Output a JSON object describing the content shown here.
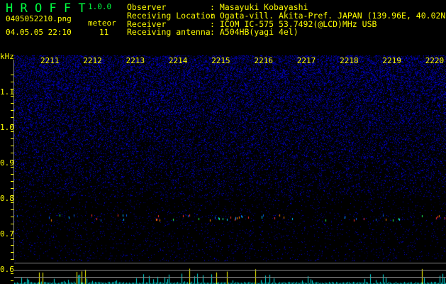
{
  "app": {
    "name": "H R O F F T",
    "version": "1.0.0"
  },
  "file": {
    "name": "0405052210.png",
    "datetime": "04.05.05 22:10",
    "meteor_label": "meteor",
    "meteor_count": "11"
  },
  "info": [
    {
      "label": "Observer",
      "value": "Masayuki Kobayashi"
    },
    {
      "label": "Receiving Location",
      "value": "Ogata-vill. Akita-Pref. JAPAN (139.96E, 40.02N)"
    },
    {
      "label": "Receiver",
      "value": "ICOM IC-575 53.7492(@LCD)MHz USB"
    },
    {
      "label": "Receiving antenna",
      "value": "A504HB(yagi 4el)"
    }
  ],
  "axis": {
    "y_unit": "kHz",
    "y_ticks": [
      "1.1",
      "1.0",
      "0.9",
      "0.8",
      "0.7",
      "0.6"
    ],
    "x_ticks": [
      "2211",
      "2212",
      "2213",
      "2214",
      "2215",
      "2216",
      "2217",
      "2218",
      "2219",
      "2220"
    ]
  },
  "colors": {
    "text": "#ffff00",
    "title": "#00ff40",
    "noise": "#0000c0",
    "count_bar": "#00e0e0",
    "meteor_bar": "#ffff00"
  }
}
